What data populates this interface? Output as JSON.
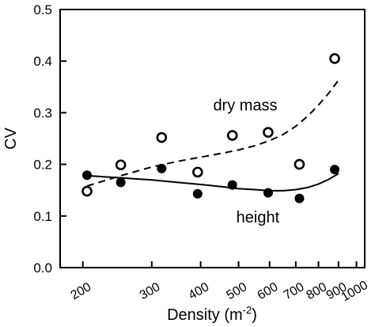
{
  "chart_data": {
    "type": "scatter",
    "title": "",
    "xlabel": "Density (m",
    "xlabel_superscript": "-2",
    "xlabel_suffix": ")",
    "ylabel": "CV",
    "x_scale": "log",
    "xlim": [
      175,
      1050
    ],
    "ylim": [
      0,
      0.5
    ],
    "x_ticks": [
      200,
      300,
      400,
      500,
      600,
      700,
      800,
      900,
      1000
    ],
    "x_tick_labels": [
      "200",
      "300",
      "400",
      "500",
      "600",
      "700",
      "800",
      "900",
      "1000"
    ],
    "y_ticks": [
      0,
      0.1,
      0.2,
      0.3,
      0.4,
      0.5
    ],
    "y_tick_labels": [
      "0.0",
      "0.1",
      "0.2",
      "0.3",
      "0.4",
      "0.5"
    ],
    "grid": false,
    "legend": "none",
    "series": [
      {
        "name": "dry mass",
        "marker": "open-circle",
        "line_style": "dashed",
        "x": [
          205,
          250,
          318,
          393,
          482,
          595,
          715,
          880
        ],
        "y": [
          0.148,
          0.199,
          0.252,
          0.185,
          0.256,
          0.262,
          0.2,
          0.405
        ],
        "fit_x": [
          205,
          250,
          300,
          350,
          400,
          450,
          500,
          550,
          600,
          650,
          700,
          750,
          800,
          850,
          900
        ],
        "fit_y": [
          0.158,
          0.178,
          0.195,
          0.206,
          0.214,
          0.221,
          0.228,
          0.236,
          0.246,
          0.258,
          0.274,
          0.293,
          0.315,
          0.338,
          0.363
        ]
      },
      {
        "name": "height",
        "marker": "filled-circle",
        "line_style": "solid",
        "x": [
          205,
          250,
          318,
          393,
          482,
          595,
          715,
          880
        ],
        "y": [
          0.179,
          0.165,
          0.192,
          0.143,
          0.16,
          0.145,
          0.134,
          0.19
        ],
        "fit_x": [
          205,
          250,
          300,
          350,
          400,
          450,
          500,
          550,
          600,
          650,
          700,
          750,
          800,
          850,
          900
        ],
        "fit_y": [
          0.178,
          0.174,
          0.17,
          0.165,
          0.161,
          0.157,
          0.153,
          0.151,
          0.149,
          0.149,
          0.151,
          0.155,
          0.162,
          0.171,
          0.182
        ]
      }
    ],
    "annotations": [
      {
        "text": "dry mass",
        "x": 520,
        "y": 0.315
      },
      {
        "text": "height",
        "x": 560,
        "y": 0.098
      }
    ]
  }
}
